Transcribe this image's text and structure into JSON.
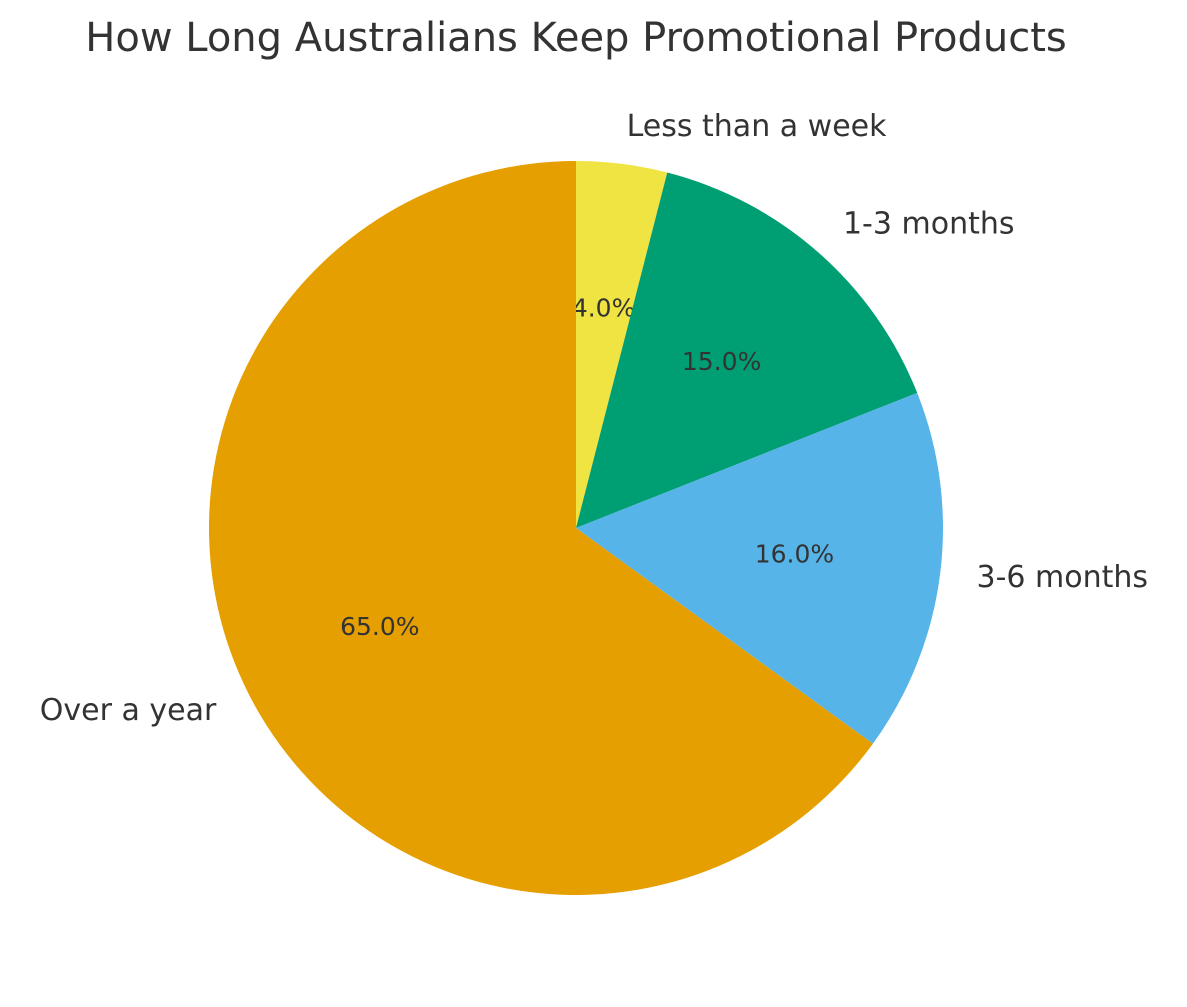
{
  "chart_data": {
    "type": "pie",
    "title": "How Long Australians Keep Promotional Products",
    "categories": [
      "Less than a week",
      "1-3 months",
      "3-6 months",
      "Over a year"
    ],
    "values": [
      4,
      15,
      16,
      65
    ],
    "value_labels": [
      "4.0%",
      "15.0%",
      "16.0%",
      "65.0%"
    ],
    "colors": [
      "#f0e442",
      "#009e73",
      "#56b4e9",
      "#e69f00"
    ]
  }
}
